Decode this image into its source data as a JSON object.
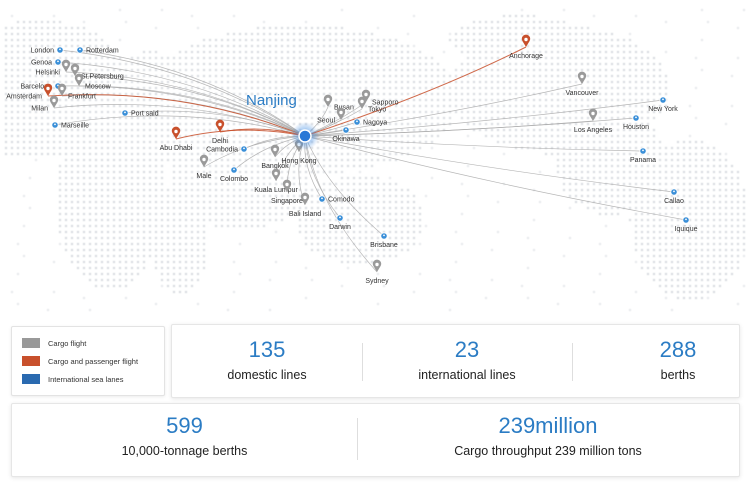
{
  "hub": {
    "name": "Nanjing"
  },
  "colors": {
    "cargo_flight": "#999999",
    "cargo_passenger": "#c8502c",
    "sea_lanes": "#2a6ab0",
    "accent": "#2b7cc4"
  },
  "legend": {
    "cargo_flight": "Cargo flight",
    "cargo_passenger": "Cargo and passenger flight",
    "sea_lanes": "International sea lanes"
  },
  "cities": [
    {
      "name": "London",
      "marker": "sea"
    },
    {
      "name": "Rotterdam",
      "marker": "sea"
    },
    {
      "name": "Genoa",
      "marker": "sea"
    },
    {
      "name": "Helsinki",
      "marker": "cargo"
    },
    {
      "name": "St.Petersburg",
      "marker": "cargo"
    },
    {
      "name": "Moscow",
      "marker": "cargo"
    },
    {
      "name": "Barcelona",
      "marker": "sea"
    },
    {
      "name": "Frankfurt",
      "marker": "cargo"
    },
    {
      "name": "Amsterdam",
      "marker": "passenger"
    },
    {
      "name": "Milan",
      "marker": "cargo"
    },
    {
      "name": "Marseille",
      "marker": "sea"
    },
    {
      "name": "Port said",
      "marker": "sea"
    },
    {
      "name": "Abu Dhabi",
      "marker": "passenger"
    },
    {
      "name": "Delhi",
      "marker": "passenger"
    },
    {
      "name": "Male",
      "marker": "cargo"
    },
    {
      "name": "Colombo",
      "marker": "sea"
    },
    {
      "name": "Cambodia",
      "marker": "sea"
    },
    {
      "name": "Bangkok",
      "marker": "cargo"
    },
    {
      "name": "Hong Kong",
      "marker": "cargo"
    },
    {
      "name": "Kuala Lumpur",
      "marker": "cargo"
    },
    {
      "name": "Singapore",
      "marker": "cargo"
    },
    {
      "name": "Bali Island",
      "marker": "cargo"
    },
    {
      "name": "Comodo",
      "marker": "sea"
    },
    {
      "name": "Darwin",
      "marker": "sea"
    },
    {
      "name": "Brisbane",
      "marker": "sea"
    },
    {
      "name": "Sydney",
      "marker": "cargo"
    },
    {
      "name": "Busan",
      "marker": "cargo"
    },
    {
      "name": "Seoul",
      "marker": "cargo"
    },
    {
      "name": "Sapporo",
      "marker": "cargo"
    },
    {
      "name": "Tokyo",
      "marker": "cargo"
    },
    {
      "name": "Nagoya",
      "marker": "sea"
    },
    {
      "name": "Okinawa",
      "marker": "sea"
    },
    {
      "name": "Anchorage",
      "marker": "passenger"
    },
    {
      "name": "Vancouver",
      "marker": "cargo"
    },
    {
      "name": "Los Angeles",
      "marker": "cargo"
    },
    {
      "name": "New York",
      "marker": "sea"
    },
    {
      "name": "Houston",
      "marker": "sea"
    },
    {
      "name": "Panama",
      "marker": "sea"
    },
    {
      "name": "Callao",
      "marker": "sea"
    },
    {
      "name": "Iquique",
      "marker": "sea"
    }
  ],
  "stats_row1": [
    {
      "value": "135",
      "label": "domestic lines"
    },
    {
      "value": "23",
      "label": "international lines"
    },
    {
      "value": "288",
      "label": "berths"
    }
  ],
  "stats_row2": [
    {
      "value": "599",
      "label": "10,000-tonnage berths"
    },
    {
      "value": "239million",
      "label": "Cargo throughput 239 million tons"
    }
  ]
}
